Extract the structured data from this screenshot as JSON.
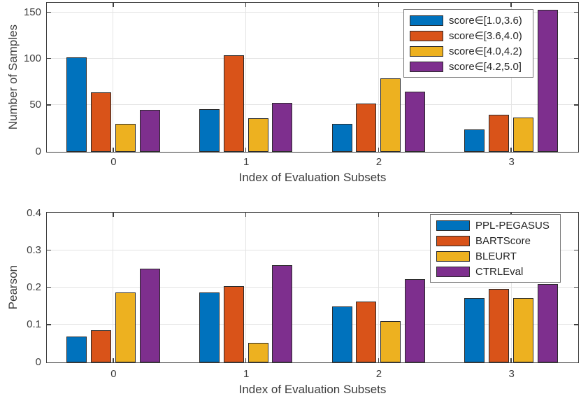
{
  "figure": {
    "background": "#ffffff",
    "axis_color": "#3f3f3f",
    "grid_color": "#e4e4e4",
    "text_color": "#3d3d3d"
  },
  "chart_data": [
    {
      "type": "bar",
      "title": "",
      "xlabel": "Index of Evaluation Subsets",
      "ylabel": "Number of Samples",
      "categories": [
        "0",
        "1",
        "2",
        "3"
      ],
      "yticks": [
        0,
        50,
        100,
        150
      ],
      "ylim": [
        0,
        160
      ],
      "grid": true,
      "legend_position": "northeast-inside",
      "series": [
        {
          "name": "score∈[1.0,3.6)",
          "color": "#0072BD",
          "values": [
            102,
            46,
            30,
            24
          ]
        },
        {
          "name": "score∈[3.6,4.0)",
          "color": "#D95319",
          "values": [
            64,
            104,
            52,
            40
          ]
        },
        {
          "name": "score∈[4.0,4.2)",
          "color": "#EDB120",
          "values": [
            30,
            36,
            79,
            37
          ]
        },
        {
          "name": "score∈[4.2,5.0]",
          "color": "#7E2F8E",
          "values": [
            45,
            53,
            65,
            153
          ]
        }
      ]
    },
    {
      "type": "bar",
      "title": "",
      "xlabel": "Index of Evaluation Subsets",
      "ylabel": "Pearson",
      "categories": [
        "0",
        "1",
        "2",
        "3"
      ],
      "yticks": [
        0,
        0.1,
        0.2,
        0.3,
        0.4
      ],
      "ylim": [
        0,
        0.4
      ],
      "grid": true,
      "legend_position": "northeast-inside",
      "series": [
        {
          "name": "PPL-PEGASUS",
          "color": "#0072BD",
          "values": [
            0.07,
            0.187,
            0.151,
            0.172
          ]
        },
        {
          "name": "BARTScore",
          "color": "#D95319",
          "values": [
            0.087,
            0.205,
            0.163,
            0.198
          ]
        },
        {
          "name": "BLEURT",
          "color": "#EDB120",
          "values": [
            0.187,
            0.052,
            0.11,
            0.172
          ]
        },
        {
          "name": "CTRLEval",
          "color": "#7E2F8E",
          "values": [
            0.251,
            0.262,
            0.223,
            0.211
          ]
        }
      ]
    }
  ]
}
